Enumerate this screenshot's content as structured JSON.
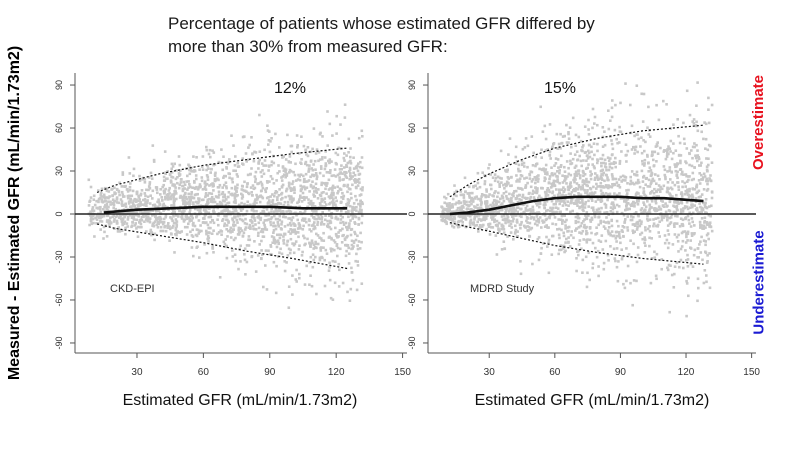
{
  "header": {
    "line1": "Percentage of patients whose estimated GFR differed by",
    "line2": "more than 30% from measured GFR:"
  },
  "y_axis_label": "Measured - Estimated GFR (mL/min/1.73m2)",
  "side_labels": {
    "over": "Overestimate",
    "under": "Underestimate"
  },
  "colors": {
    "over": "#e8121f",
    "under": "#1b1bd3",
    "points": "#c8c8c8",
    "lines": "#111111"
  },
  "chart_data": [
    {
      "type": "scatter",
      "panel": "CKD-EPI",
      "percent_label": "12%",
      "xlabel": "Estimated GFR (mL/min/1.73m2)",
      "ylabel": "Measured - Estimated GFR (mL/min/1.73m2)",
      "xlim": [
        2,
        152
      ],
      "ylim": [
        -97,
        97
      ],
      "xticks": [
        30,
        60,
        90,
        120,
        150
      ],
      "yticks": [
        -90,
        -60,
        -30,
        0,
        30,
        60,
        90
      ],
      "reference_line": 0,
      "median_line": {
        "x": [
          15,
          30,
          45,
          60,
          75,
          90,
          105,
          125
        ],
        "y": [
          1,
          3,
          4,
          5,
          5,
          5,
          4,
          4
        ]
      },
      "upper_band": {
        "x": [
          12,
          20,
          40,
          60,
          80,
          100,
          125
        ],
        "y": [
          15,
          20,
          28,
          34,
          38,
          42,
          46
        ]
      },
      "lower_band": {
        "x": [
          12,
          20,
          40,
          60,
          80,
          100,
          125
        ],
        "y": [
          -7,
          -10,
          -15,
          -20,
          -26,
          -31,
          -38
        ]
      }
    },
    {
      "type": "scatter",
      "panel": "MDRD Study",
      "percent_label": "15%",
      "xlabel": "Estimated GFR (mL/min/1.73m2)",
      "ylabel": "Measured - Estimated GFR (mL/min/1.73m2)",
      "xlim": [
        2,
        152
      ],
      "ylim": [
        -97,
        97
      ],
      "xticks": [
        30,
        60,
        90,
        120,
        150
      ],
      "yticks": [
        -90,
        -60,
        -30,
        0,
        30,
        60,
        90
      ],
      "reference_line": 0,
      "median_line": {
        "x": [
          12,
          20,
          30,
          40,
          50,
          60,
          70,
          80,
          90,
          100,
          110,
          128
        ],
        "y": [
          0,
          1,
          3,
          6,
          9,
          11,
          12,
          12,
          12,
          11,
          11,
          9
        ]
      },
      "upper_band": {
        "x": [
          12,
          20,
          30,
          45,
          60,
          80,
          100,
          128
        ],
        "y": [
          12,
          20,
          28,
          38,
          46,
          53,
          58,
          62
        ]
      },
      "lower_band": {
        "x": [
          12,
          20,
          30,
          45,
          60,
          80,
          100,
          128
        ],
        "y": [
          -6,
          -9,
          -12,
          -17,
          -22,
          -27,
          -31,
          -35
        ]
      }
    }
  ]
}
